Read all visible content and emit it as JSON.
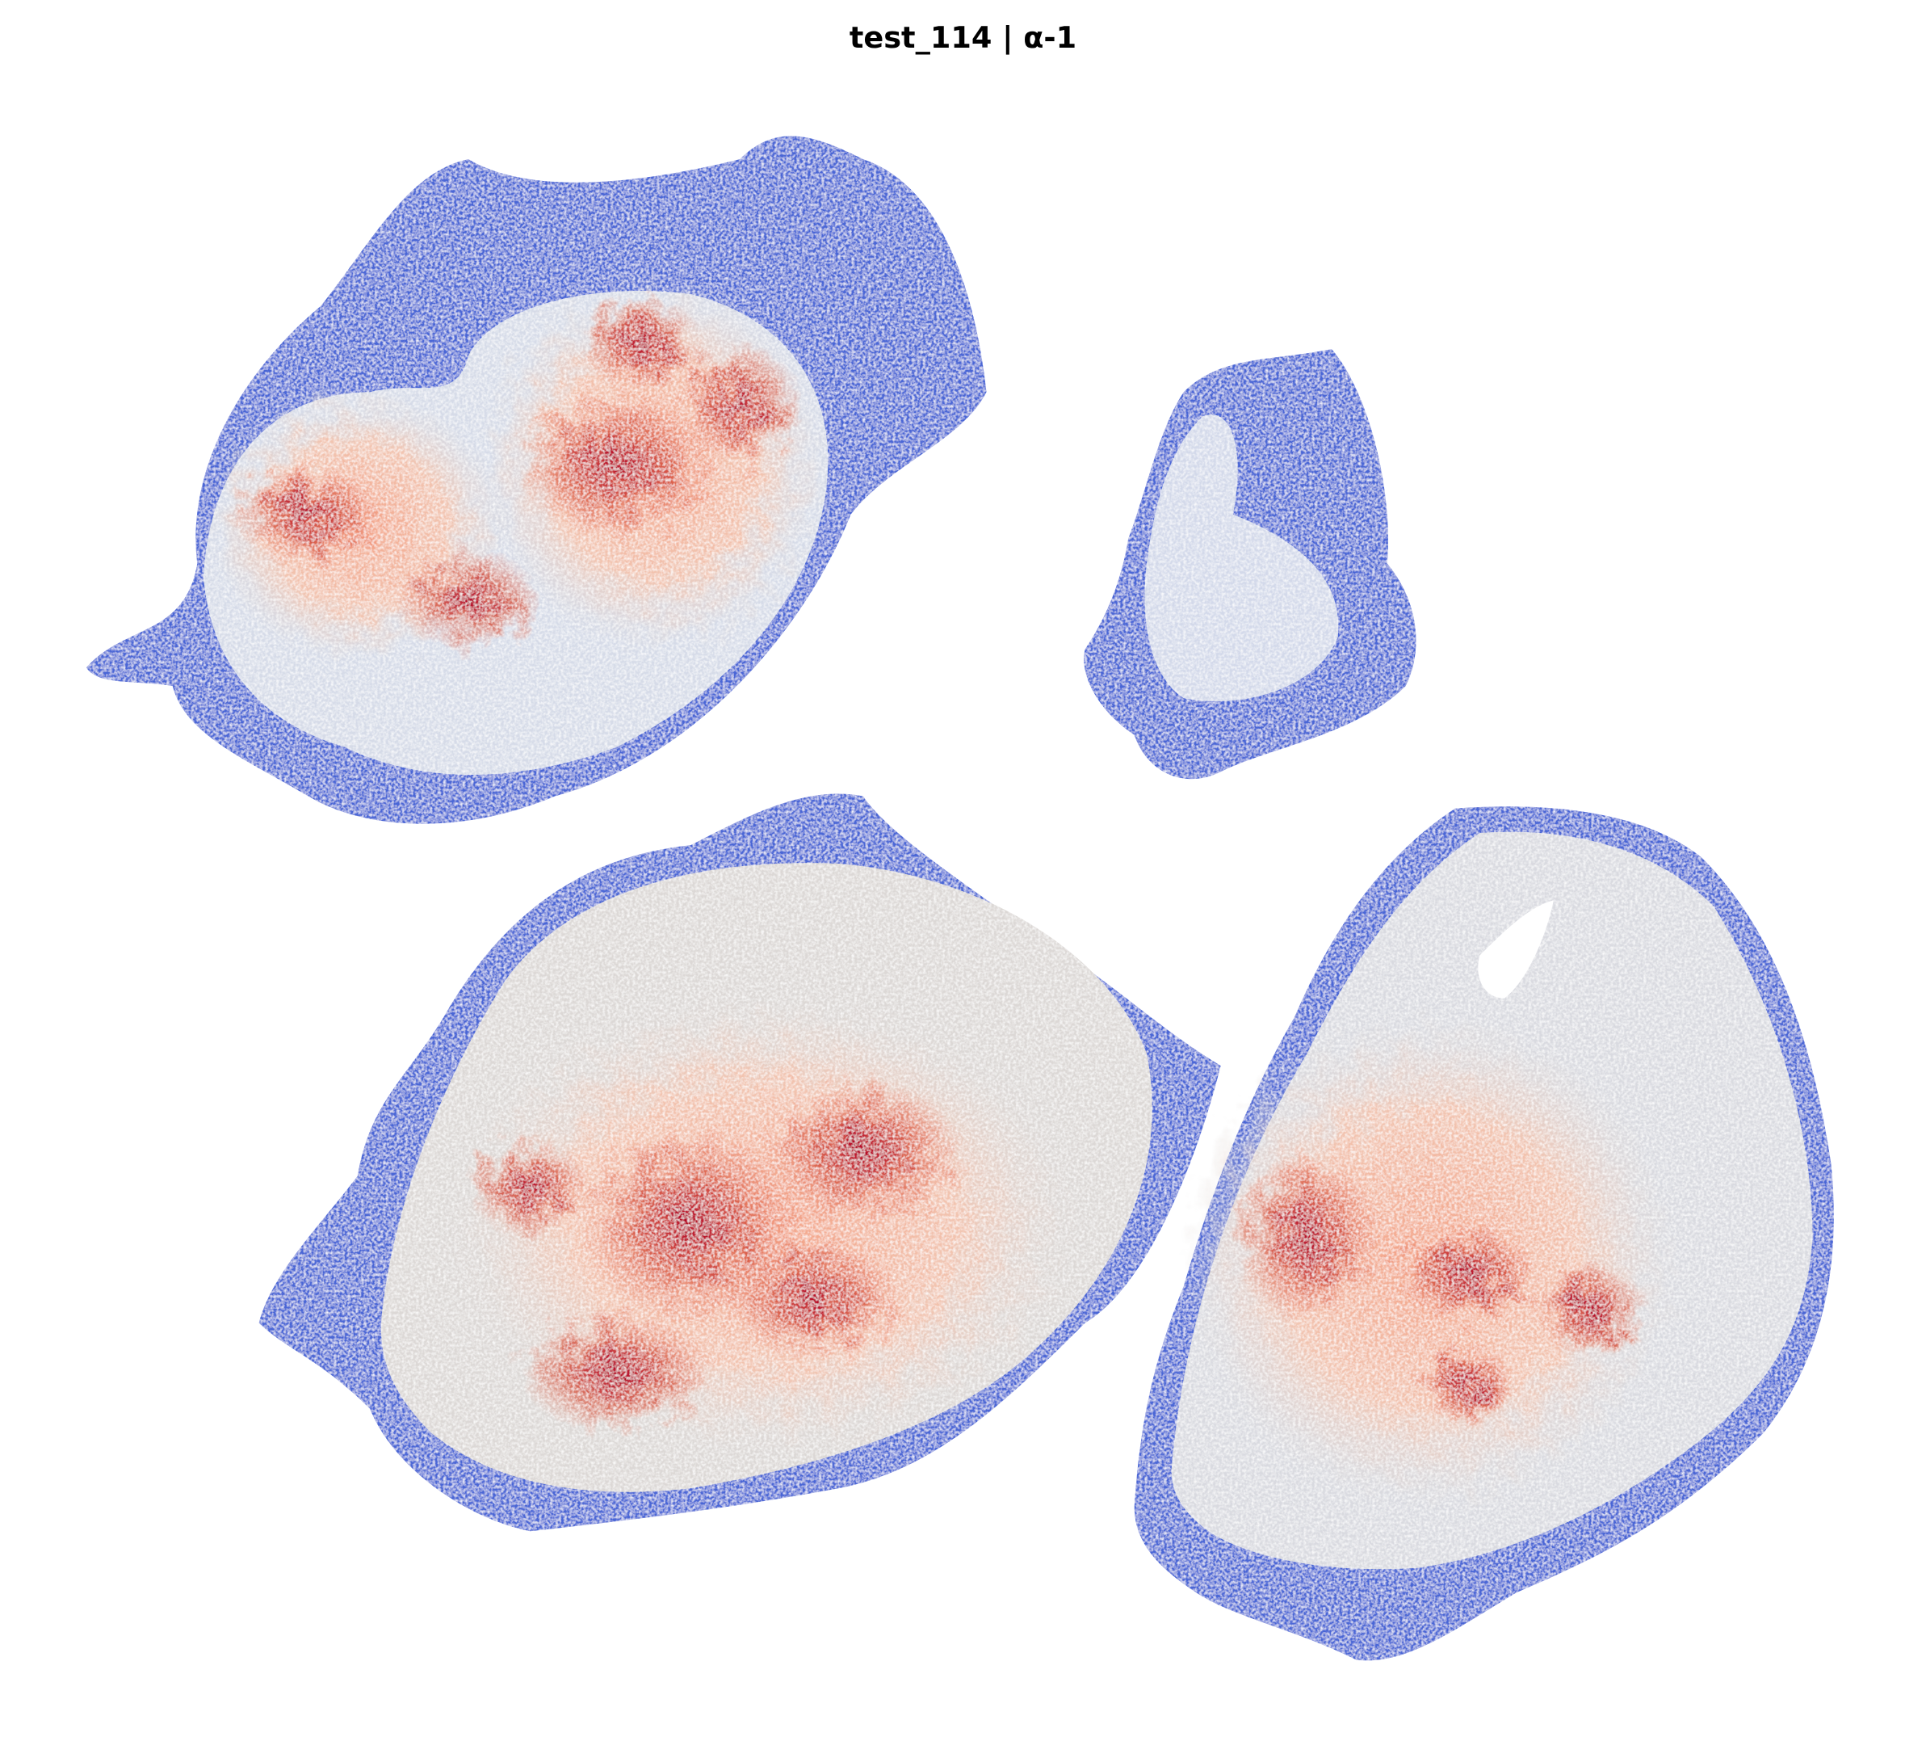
{
  "title": "test_114 | α-1"
}
